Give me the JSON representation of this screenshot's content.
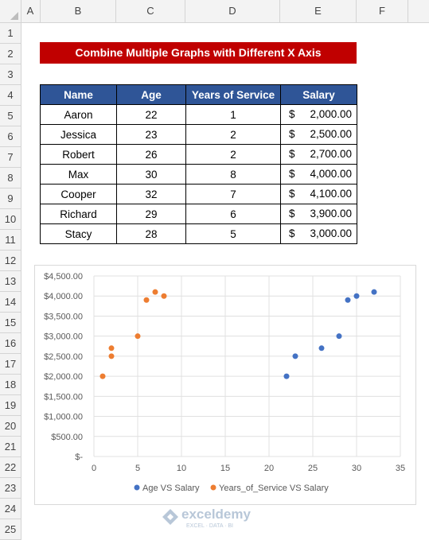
{
  "columns": [
    "A",
    "B",
    "C",
    "D",
    "E",
    "F"
  ],
  "rows": [
    "1",
    "2",
    "3",
    "4",
    "5",
    "6",
    "7",
    "8",
    "9",
    "10",
    "11",
    "12",
    "13",
    "14",
    "15",
    "16",
    "17",
    "18",
    "19",
    "20",
    "21",
    "22",
    "23",
    "24",
    "25"
  ],
  "title": "Combine Multiple Graphs with Different X Axis",
  "table": {
    "headers": [
      "Name",
      "Age",
      "Years of Service",
      "Salary"
    ],
    "rows": [
      {
        "name": "Aaron",
        "age": "22",
        "years": "1",
        "cur": "$",
        "salary": "2,000.00"
      },
      {
        "name": "Jessica",
        "age": "23",
        "years": "2",
        "cur": "$",
        "salary": "2,500.00"
      },
      {
        "name": "Robert",
        "age": "26",
        "years": "2",
        "cur": "$",
        "salary": "2,700.00"
      },
      {
        "name": "Max",
        "age": "30",
        "years": "8",
        "cur": "$",
        "salary": "4,000.00"
      },
      {
        "name": "Cooper",
        "age": "32",
        "years": "7",
        "cur": "$",
        "salary": "4,100.00"
      },
      {
        "name": "Richard",
        "age": "29",
        "years": "6",
        "cur": "$",
        "salary": "3,900.00"
      },
      {
        "name": "Stacy",
        "age": "28",
        "years": "5",
        "cur": "$",
        "salary": "3,000.00"
      }
    ]
  },
  "chart_data": {
    "type": "scatter",
    "title": "",
    "xlabel": "",
    "ylabel": "",
    "xlim": [
      0,
      35
    ],
    "ylim": [
      0,
      4500
    ],
    "x_ticks": [
      "0",
      "5",
      "10",
      "15",
      "20",
      "25",
      "30",
      "35"
    ],
    "y_ticks": [
      "$-",
      "$500.00",
      "$1,000.00",
      "$1,500.00",
      "$2,000.00",
      "$2,500.00",
      "$3,000.00",
      "$3,500.00",
      "$4,000.00",
      "$4,500.00"
    ],
    "grid": true,
    "legend": "bottom",
    "series": [
      {
        "name": "Age VS Salary",
        "color": "#4472c4",
        "points": [
          [
            22,
            2000
          ],
          [
            23,
            2500
          ],
          [
            26,
            2700
          ],
          [
            30,
            4000
          ],
          [
            32,
            4100
          ],
          [
            29,
            3900
          ],
          [
            28,
            3000
          ]
        ]
      },
      {
        "name": "Years_of_Service VS Salary",
        "color": "#ed7d31",
        "points": [
          [
            1,
            2000
          ],
          [
            2,
            2500
          ],
          [
            2,
            2700
          ],
          [
            8,
            4000
          ],
          [
            7,
            4100
          ],
          [
            6,
            3900
          ],
          [
            5,
            3000
          ]
        ]
      }
    ]
  },
  "watermark": {
    "name": "exceldemy",
    "tagline": "EXCEL · DATA · BI"
  }
}
